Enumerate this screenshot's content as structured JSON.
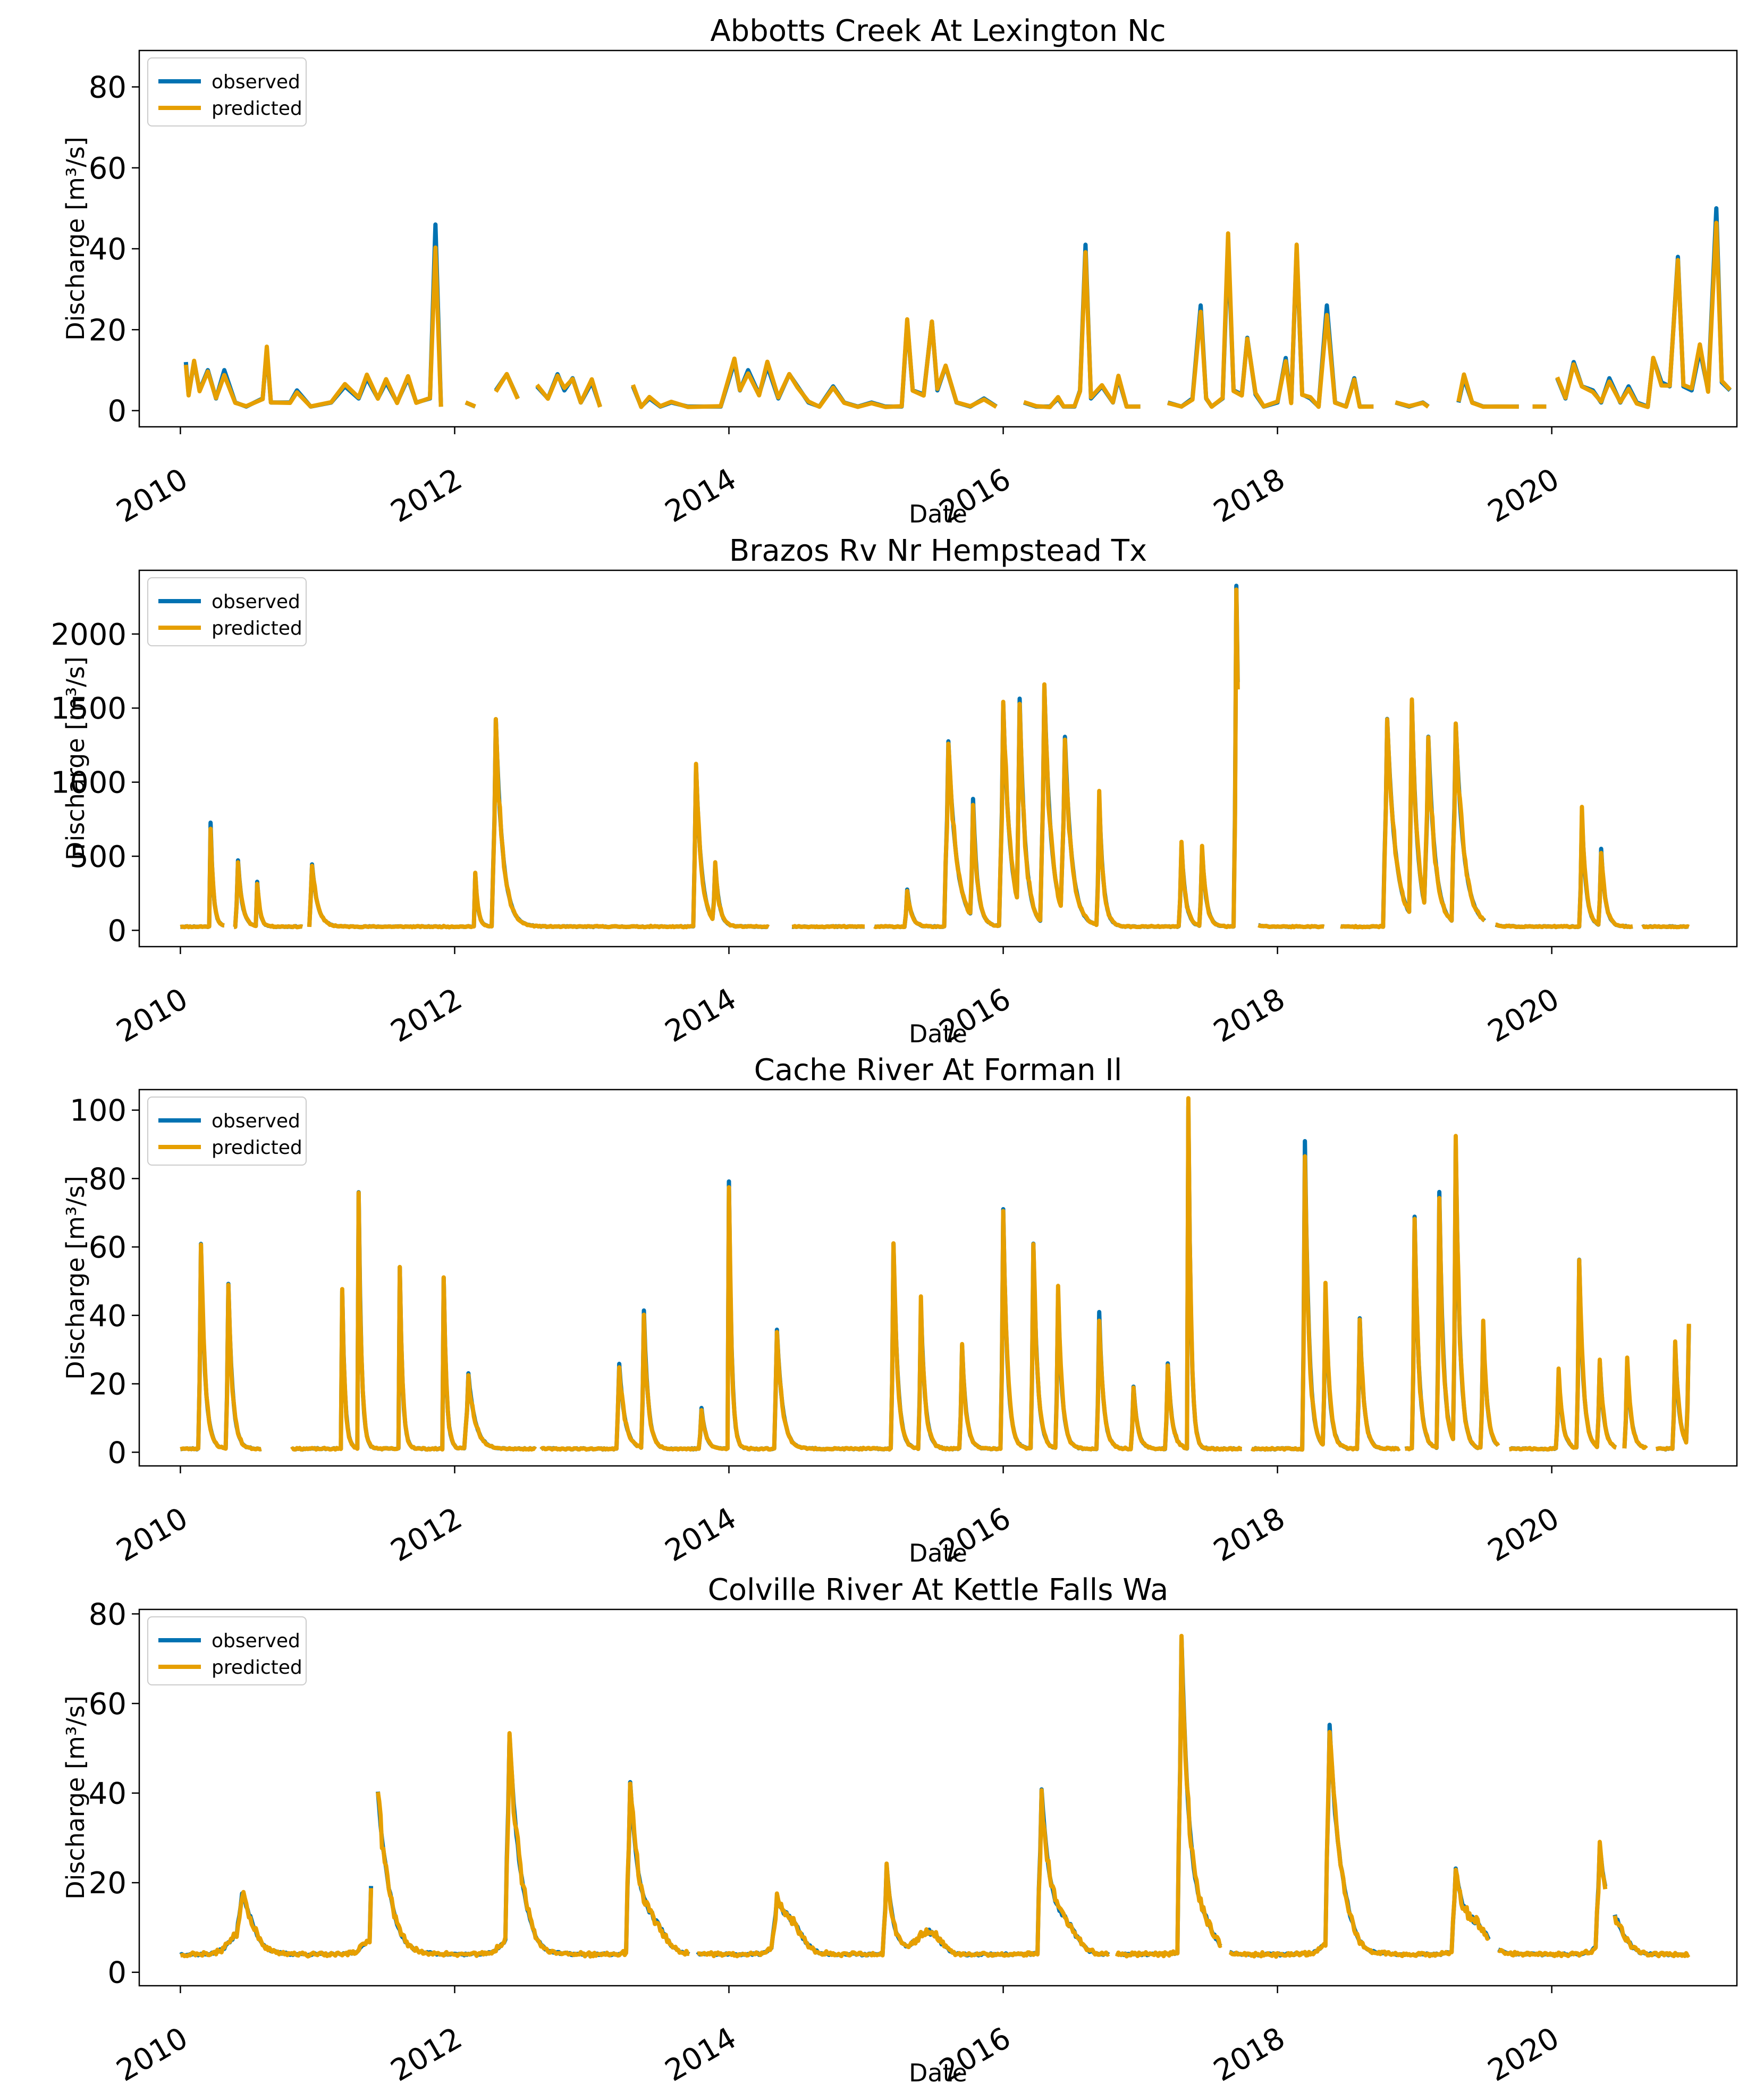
{
  "colors": {
    "observed": "#0072B2",
    "predicted": "#E69F00"
  },
  "chart_data": [
    {
      "type": "line",
      "title": "Abbotts Creek At Lexington Nc",
      "xlabel": "Date",
      "ylabel": "Discharge [m³/s]",
      "xlim": [
        2009.7,
        2021.35
      ],
      "ylim": [
        -4,
        89
      ],
      "yticks": [
        0,
        20,
        40,
        60,
        80
      ],
      "xticks": [
        2010,
        2012,
        2014,
        2016,
        2018,
        2020
      ],
      "legend": [
        "observed",
        "predicted"
      ],
      "legend_position": "top-left",
      "series": [
        {
          "name": "observed",
          "points": [
            [
              2010.04,
              12
            ],
            [
              2010.06,
              4
            ],
            [
              2010.1,
              12
            ],
            [
              2010.14,
              5
            ],
            [
              2010.2,
              10
            ],
            [
              2010.26,
              3
            ],
            [
              2010.32,
              10
            ],
            [
              2010.4,
              2
            ],
            [
              2010.48,
              1
            ],
            [
              2010.6,
              3
            ],
            [
              2010.63,
              15
            ],
            [
              2010.66,
              2
            ],
            [
              2010.8,
              2
            ],
            [
              2010.85,
              5
            ],
            [
              2010.95,
              1
            ],
            [
              2011.1,
              2
            ],
            [
              2011.2,
              6
            ],
            [
              2011.3,
              3
            ],
            [
              2011.36,
              8
            ],
            [
              2011.44,
              3
            ],
            [
              2011.5,
              7
            ],
            [
              2011.58,
              2
            ],
            [
              2011.66,
              8
            ],
            [
              2011.72,
              2
            ],
            [
              2011.82,
              3
            ],
            [
              2011.86,
              46
            ],
            [
              2011.9,
              1
            ],
            null,
            [
              2012.08,
              2
            ],
            [
              2012.15,
              1
            ],
            null,
            [
              2012.3,
              5
            ],
            [
              2012.38,
              9
            ],
            [
              2012.46,
              3
            ],
            null,
            [
              2012.6,
              6
            ],
            [
              2012.68,
              3
            ],
            [
              2012.75,
              9
            ],
            [
              2012.8,
              5
            ],
            [
              2012.86,
              8
            ],
            [
              2012.92,
              2
            ],
            [
              2013.0,
              7
            ],
            [
              2013.06,
              1
            ],
            null,
            [
              2013.3,
              6
            ],
            [
              2013.36,
              1
            ],
            [
              2013.42,
              3
            ],
            [
              2013.5,
              1
            ],
            [
              2013.58,
              2
            ],
            [
              2013.7,
              1
            ],
            [
              2013.8,
              1
            ],
            [
              2013.94,
              1
            ],
            [
              2014.04,
              12
            ],
            [
              2014.08,
              5
            ],
            [
              2014.14,
              10
            ],
            [
              2014.22,
              4
            ],
            [
              2014.28,
              11
            ],
            [
              2014.36,
              3
            ],
            [
              2014.44,
              9
            ],
            [
              2014.5,
              6
            ],
            [
              2014.58,
              2
            ],
            [
              2014.66,
              1
            ],
            [
              2014.76,
              6
            ],
            [
              2014.84,
              2
            ],
            [
              2014.94,
              1
            ],
            [
              2015.04,
              2
            ],
            [
              2015.14,
              1
            ],
            [
              2015.26,
              1
            ],
            [
              2015.3,
              22
            ],
            [
              2015.34,
              5
            ],
            [
              2015.42,
              4
            ],
            [
              2015.48,
              22
            ],
            [
              2015.52,
              5
            ],
            [
              2015.58,
              11
            ],
            [
              2015.66,
              2
            ],
            [
              2015.76,
              1
            ],
            [
              2015.86,
              3
            ],
            [
              2015.95,
              1
            ],
            null,
            [
              2016.15,
              2
            ],
            [
              2016.24,
              1
            ],
            [
              2016.34,
              1
            ],
            [
              2016.4,
              3
            ],
            [
              2016.44,
              1
            ],
            [
              2016.52,
              1
            ],
            [
              2016.56,
              5
            ],
            [
              2016.6,
              41
            ],
            [
              2016.64,
              3
            ],
            [
              2016.72,
              6
            ],
            [
              2016.8,
              2
            ],
            [
              2016.84,
              8
            ],
            [
              2016.9,
              1
            ],
            [
              2017.0,
              1
            ],
            null,
            [
              2017.2,
              2
            ],
            [
              2017.3,
              1
            ],
            [
              2017.38,
              3
            ],
            [
              2017.44,
              26
            ],
            [
              2017.48,
              3
            ],
            [
              2017.52,
              1
            ],
            [
              2017.6,
              3
            ],
            [
              2017.64,
              41
            ],
            [
              2017.68,
              5
            ],
            [
              2017.74,
              4
            ],
            [
              2017.78,
              18
            ],
            [
              2017.84,
              4
            ],
            [
              2017.9,
              1
            ],
            [
              2018.0,
              2
            ],
            [
              2018.06,
              13
            ],
            [
              2018.1,
              2
            ],
            [
              2018.14,
              40
            ],
            [
              2018.18,
              4
            ],
            [
              2018.24,
              3
            ],
            [
              2018.3,
              1
            ],
            [
              2018.36,
              26
            ],
            [
              2018.42,
              2
            ],
            [
              2018.5,
              1
            ],
            [
              2018.56,
              8
            ],
            [
              2018.6,
              1
            ],
            [
              2018.7,
              1
            ],
            null,
            [
              2018.86,
              2
            ],
            [
              2018.96,
              1
            ],
            [
              2019.06,
              2
            ],
            [
              2019.1,
              1
            ],
            null,
            [
              2019.32,
              2
            ],
            [
              2019.36,
              8
            ],
            [
              2019.42,
              2
            ],
            [
              2019.5,
              1
            ],
            [
              2019.6,
              1
            ],
            [
              2019.7,
              1
            ],
            [
              2019.76,
              1
            ],
            null,
            [
              2019.86,
              1
            ],
            [
              2019.96,
              1
            ],
            null,
            [
              2020.04,
              8
            ],
            [
              2020.1,
              3
            ],
            [
              2020.16,
              12
            ],
            [
              2020.22,
              6
            ],
            [
              2020.3,
              5
            ],
            [
              2020.36,
              2
            ],
            [
              2020.42,
              8
            ],
            [
              2020.5,
              2
            ],
            [
              2020.56,
              6
            ],
            [
              2020.62,
              2
            ],
            [
              2020.7,
              1
            ],
            [
              2020.74,
              13
            ],
            [
              2020.8,
              7
            ],
            [
              2020.86,
              6
            ],
            [
              2020.92,
              38
            ],
            [
              2020.96,
              6
            ],
            [
              2021.02,
              5
            ],
            [
              2021.08,
              15
            ],
            [
              2021.14,
              5
            ],
            [
              2021.2,
              50
            ],
            [
              2021.24,
              7
            ],
            [
              2021.3,
              5
            ]
          ]
        }
      ]
    },
    {
      "type": "line",
      "title": "Brazos Rv Nr Hempstead Tx",
      "xlabel": "Date",
      "ylabel": "Discharge [m³/s]",
      "xlim": [
        2009.7,
        2021.35
      ],
      "ylim": [
        -110,
        2430
      ],
      "yticks": [
        0,
        500,
        1000,
        1500,
        2000
      ],
      "xticks": [
        2010,
        2012,
        2014,
        2016,
        2018,
        2020
      ],
      "legend": [
        "observed",
        "predicted"
      ],
      "legend_position": "top-left"
    },
    {
      "type": "line",
      "title": "Cache River At Forman Il",
      "xlabel": "Date",
      "ylabel": "Discharge [m³/s]",
      "xlim": [
        2009.7,
        2021.35
      ],
      "ylim": [
        -4,
        106
      ],
      "yticks": [
        0,
        20,
        40,
        60,
        80,
        100
      ],
      "xticks": [
        2010,
        2012,
        2014,
        2016,
        2018,
        2020
      ],
      "legend": [
        "observed",
        "predicted"
      ],
      "legend_position": "top-left"
    },
    {
      "type": "line",
      "title": "Colville River At Kettle Falls Wa",
      "xlabel": "Date",
      "ylabel": "Discharge [m³/s]",
      "xlim": [
        2009.7,
        2021.35
      ],
      "ylim": [
        -3,
        81
      ],
      "yticks": [
        0,
        20,
        40,
        60,
        80
      ],
      "xticks": [
        2010,
        2012,
        2014,
        2016,
        2018,
        2020
      ],
      "legend": [
        "observed",
        "predicted"
      ],
      "legend_position": "top-left"
    }
  ]
}
